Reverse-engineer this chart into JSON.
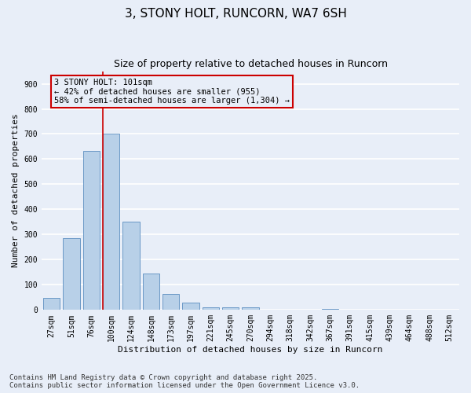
{
  "title": "3, STONY HOLT, RUNCORN, WA7 6SH",
  "subtitle": "Size of property relative to detached houses in Runcorn",
  "xlabel": "Distribution of detached houses by size in Runcorn",
  "ylabel": "Number of detached properties",
  "categories": [
    "27sqm",
    "51sqm",
    "76sqm",
    "100sqm",
    "124sqm",
    "148sqm",
    "173sqm",
    "197sqm",
    "221sqm",
    "245sqm",
    "270sqm",
    "294sqm",
    "318sqm",
    "342sqm",
    "367sqm",
    "391sqm",
    "415sqm",
    "439sqm",
    "464sqm",
    "488sqm",
    "512sqm"
  ],
  "values": [
    47,
    285,
    633,
    700,
    350,
    145,
    65,
    30,
    10,
    10,
    10,
    0,
    0,
    0,
    5,
    0,
    0,
    0,
    0,
    0,
    0
  ],
  "bar_color": "#b8d0e8",
  "bar_edge_color": "#5b8dc0",
  "highlight_line_color": "#cc0000",
  "highlight_bin_index": 3,
  "annotation_text": "3 STONY HOLT: 101sqm\n← 42% of detached houses are smaller (955)\n58% of semi-detached houses are larger (1,304) →",
  "annotation_box_color": "#cc0000",
  "annotation_bg_color": "#e8eef8",
  "ylim": [
    0,
    950
  ],
  "yticks": [
    0,
    100,
    200,
    300,
    400,
    500,
    600,
    700,
    800,
    900
  ],
  "footnote": "Contains HM Land Registry data © Crown copyright and database right 2025.\nContains public sector information licensed under the Open Government Licence v3.0.",
  "background_color": "#e8eef8",
  "grid_color": "#ffffff",
  "title_fontsize": 11,
  "subtitle_fontsize": 9,
  "label_fontsize": 8,
  "tick_fontsize": 7,
  "annotation_fontsize": 7.5,
  "footnote_fontsize": 6.5
}
